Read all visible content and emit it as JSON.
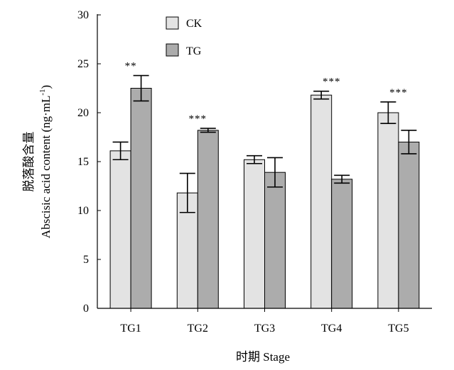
{
  "chart_data": {
    "type": "bar",
    "categories": [
      "TG1",
      "TG2",
      "TG3",
      "TG4",
      "TG5"
    ],
    "series": [
      {
        "name": "CK",
        "values": [
          16.1,
          11.8,
          15.2,
          21.8,
          20.0
        ],
        "errors": [
          0.9,
          2.0,
          0.4,
          0.4,
          1.1
        ],
        "color": "#e3e3e3"
      },
      {
        "name": "TG",
        "values": [
          22.5,
          18.2,
          13.9,
          13.2,
          17.0
        ],
        "errors": [
          1.3,
          0.2,
          1.5,
          0.4,
          1.2
        ],
        "color": "#acacac"
      }
    ],
    "significance": [
      "**",
      "***",
      "",
      "***",
      "***"
    ],
    "xlabel": "时期 Stage",
    "ylabel_cn": "脱落酸含量",
    "ylabel_en": "Abscisic acid content (ng·mL",
    "ylabel_sup": "-1",
    "ylabel_close": ")",
    "ylim": [
      0,
      30
    ],
    "yticks": [
      0,
      5,
      10,
      15,
      20,
      25,
      30
    ],
    "legend": "top-left",
    "grid": false
  }
}
